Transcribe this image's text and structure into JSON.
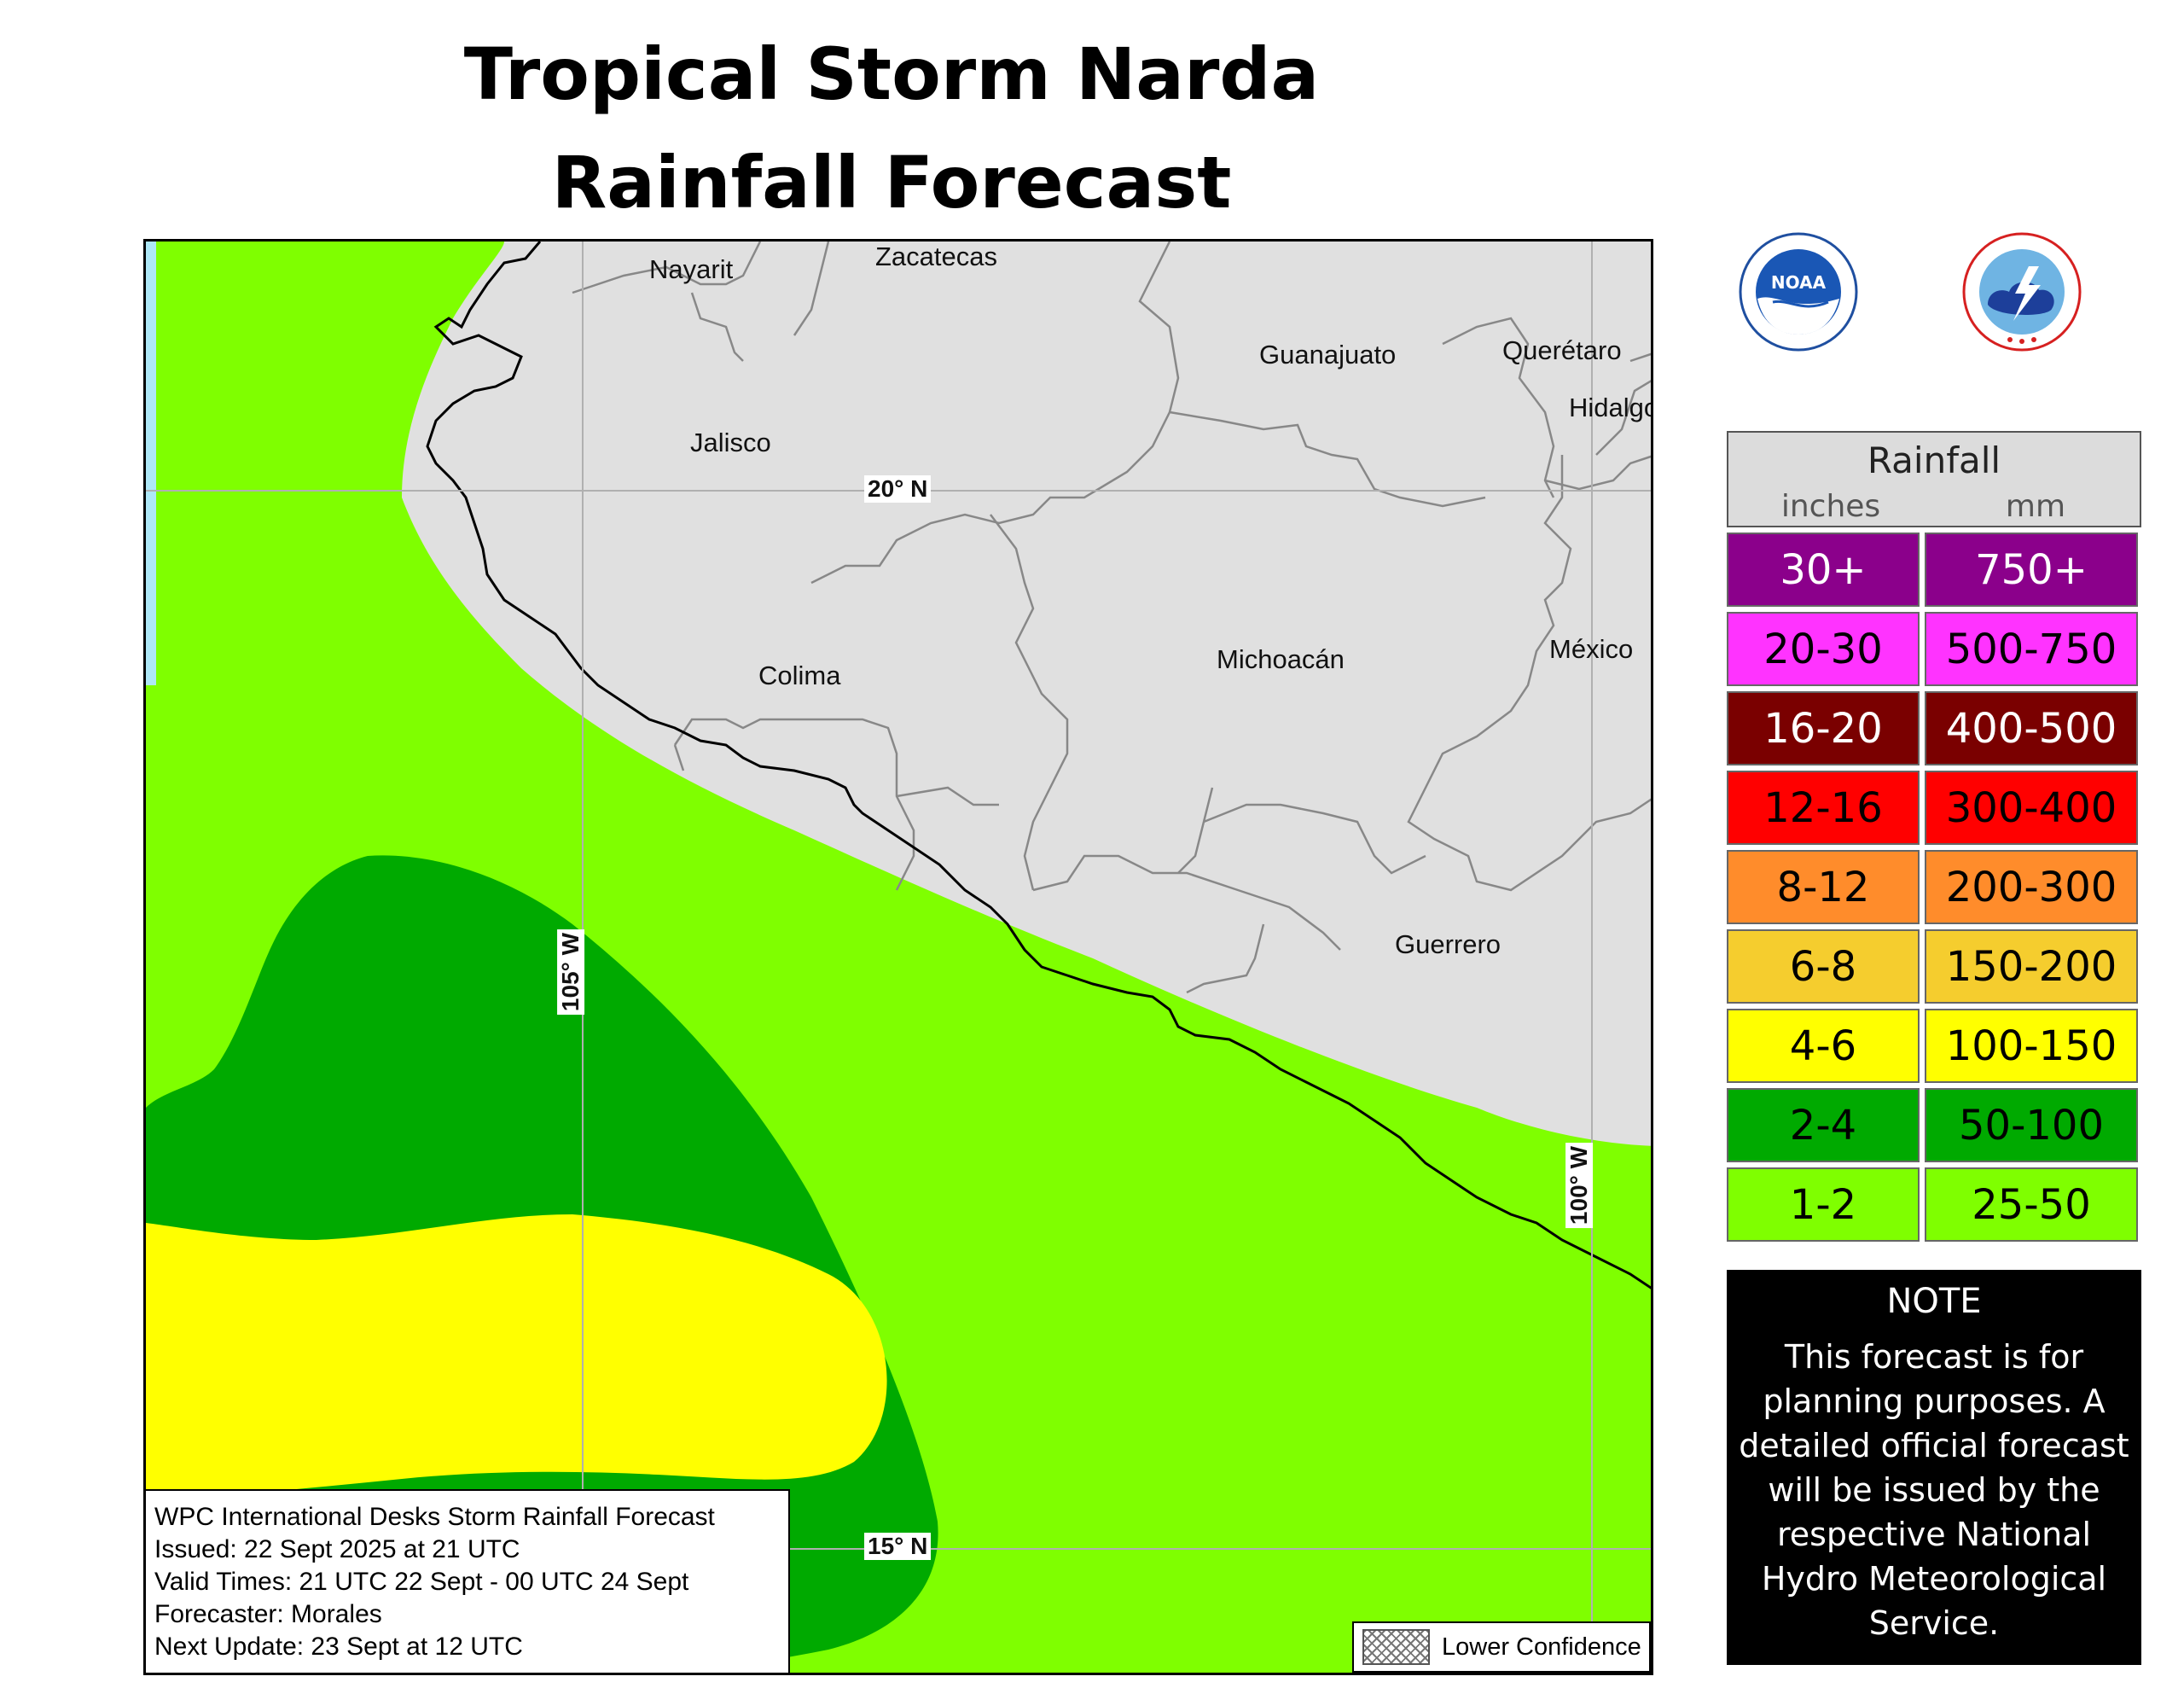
{
  "title": {
    "line1": "Tropical Storm Narda",
    "line2": "Rainfall Forecast"
  },
  "map": {
    "state_labels": [
      "Nayarit",
      "Zacatecas",
      "Guanajuato",
      "Querétaro",
      "Hidalgo",
      "Jalisco",
      "Colima",
      "Michoacán",
      "México",
      "Guerrero"
    ],
    "grid_labels": [
      "20° N",
      "15° N",
      "105° W",
      "100° W"
    ],
    "colors": {
      "ocean": "#aee8f7",
      "land": "#e0e0e0",
      "coast": "#000000",
      "border": "#888888",
      "gridline": "#b0b0b0"
    },
    "info_box": [
      "WPC International Desks Storm Rainfall Forecast",
      "Issued: 22 Sept 2025 at 21 UTC",
      "Valid Times: 21 UTC 22 Sept - 00 UTC 24 Sept",
      "Forecaster: Morales",
      "Next Update: 23 Sept at 12 UTC"
    ],
    "confidence_label": "Lower Confidence"
  },
  "logos": {
    "noaa": {
      "name": "noaa-logo",
      "text": "NOAA"
    },
    "nws": {
      "name": "nws-logo"
    }
  },
  "legend": {
    "title": "Rainfall",
    "unit_inches": "inches",
    "unit_mm": "mm",
    "rows": [
      {
        "inches": "30+",
        "mm": "750+",
        "color": "#8b008b",
        "text_color": "#ffffff"
      },
      {
        "inches": "20-30",
        "mm": "500-750",
        "color": "#ff33ff",
        "text_color": "#000000"
      },
      {
        "inches": "16-20",
        "mm": "400-500",
        "color": "#7a0000",
        "text_color": "#ffffff"
      },
      {
        "inches": "12-16",
        "mm": "300-400",
        "color": "#ff0000",
        "text_color": "#000000"
      },
      {
        "inches": "8-12",
        "mm": "200-300",
        "color": "#ff8c2b",
        "text_color": "#000000"
      },
      {
        "inches": "6-8",
        "mm": "150-200",
        "color": "#f5cd2e",
        "text_color": "#000000"
      },
      {
        "inches": "4-6",
        "mm": "100-150",
        "color": "#ffff00",
        "text_color": "#000000"
      },
      {
        "inches": "2-4",
        "mm": "50-100",
        "color": "#00aa00",
        "text_color": "#000000"
      },
      {
        "inches": "1-2",
        "mm": "25-50",
        "color": "#7fff00",
        "text_color": "#000000"
      }
    ]
  },
  "note": {
    "title": "NOTE",
    "lines": [
      "This forecast is for",
      "planning purposes. A",
      "detailed official forecast",
      "will be issued by the",
      "respective National",
      "Hydro Meteorological",
      "Service."
    ]
  }
}
